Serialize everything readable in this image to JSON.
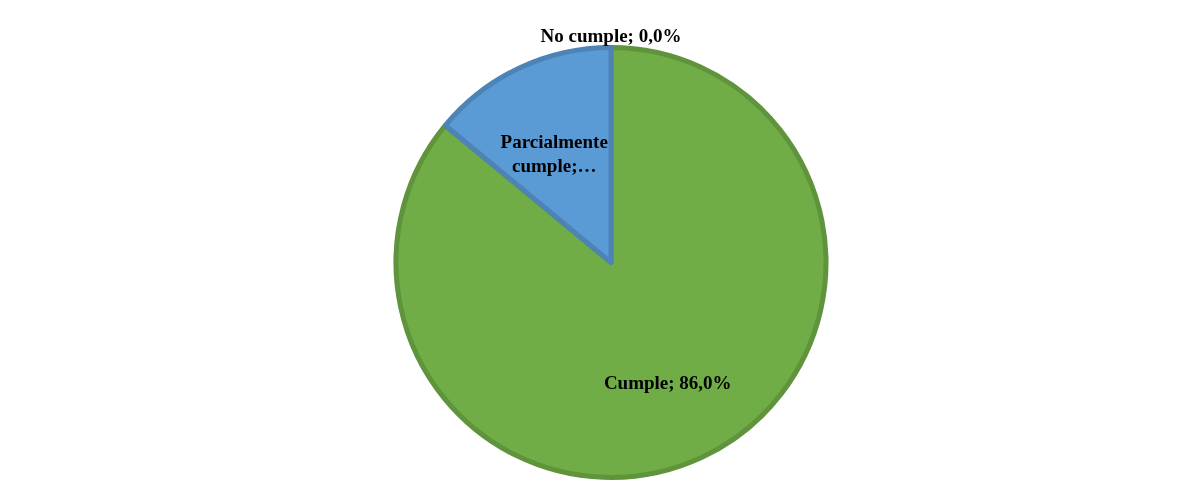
{
  "chart_data": {
    "type": "pie",
    "categories": [
      "Cumple",
      "Parcialmente cumple",
      "No cumple"
    ],
    "values": [
      86.0,
      14.0,
      0.0
    ],
    "colors": [
      "#70ad47",
      "#5b9bd5",
      "#a5a5a5"
    ],
    "value_labels": [
      "; 86,0%",
      ";…",
      "; 0,0%"
    ]
  }
}
